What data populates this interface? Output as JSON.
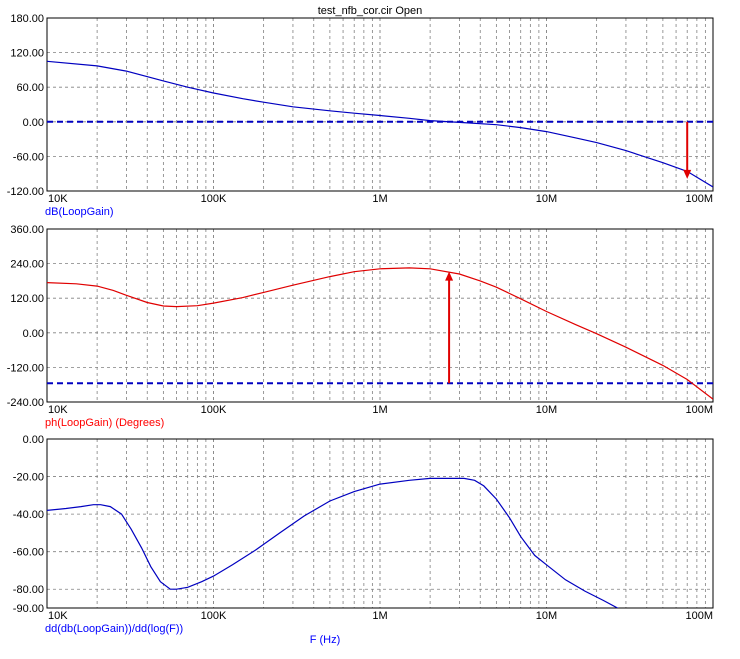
{
  "title": "test_nfb_cor.cir Open",
  "xlabel": "F (Hz)",
  "colors": {
    "background": "#ffffff",
    "grid": "#808080",
    "frame": "#000000",
    "blue": "#0000c0",
    "red": "#e00000",
    "label_blue": "#0000ff",
    "label_red": "#ff0000"
  },
  "chart_data": [
    {
      "type": "line",
      "name": "dB(LoopGain)",
      "ylabel": "dB(LoopGain)",
      "xscale": "log",
      "xlim": [
        10000,
        100000000
      ],
      "ylim": [
        -120,
        180
      ],
      "yticks": [
        "180.00",
        "120.00",
        "60.00",
        "0.00",
        "-60.00",
        "-120.00"
      ],
      "ytick_values": [
        180,
        120,
        60,
        0,
        -60,
        -120
      ],
      "xticks": [
        "10K",
        "100K",
        "1M",
        "10M",
        "100M"
      ],
      "xtick_values": [
        10000,
        100000,
        1000000,
        10000000,
        100000000
      ],
      "grid": true,
      "series": [
        {
          "x": [
            10000,
            20000,
            30000,
            50000,
            70000,
            100000,
            150000,
            200000,
            300000,
            500000,
            700000,
            1000000,
            1500000,
            2000000,
            3000000,
            5000000,
            7000000,
            10000000,
            15000000,
            20000000,
            30000000,
            50000000,
            70000000,
            100000000
          ],
          "y": [
            105,
            97,
            88,
            71,
            60,
            50,
            40,
            34,
            26,
            19,
            15,
            11,
            6,
            2,
            -1,
            -5,
            -10,
            -17,
            -28,
            -36,
            -50,
            -71,
            -86,
            -113
          ]
        }
      ],
      "hline": {
        "y": 0,
        "style": "dashed"
      },
      "marker_arrow": {
        "x": 70000000,
        "y_from": 0,
        "y_to": -99
      }
    },
    {
      "type": "line",
      "name": "ph(LoopGain) (Degrees)",
      "ylabel": "ph(LoopGain) (Degrees)",
      "xscale": "log",
      "xlim": [
        10000,
        100000000
      ],
      "ylim": [
        -240,
        360
      ],
      "yticks": [
        "360.00",
        "240.00",
        "120.00",
        "0.00",
        "-120.00",
        "-240.00"
      ],
      "ytick_values": [
        360,
        240,
        120,
        0,
        -120,
        -240
      ],
      "xticks": [
        "10K",
        "100K",
        "1M",
        "10M",
        "100M"
      ],
      "xtick_values": [
        10000,
        100000,
        1000000,
        10000000,
        100000000
      ],
      "grid": true,
      "series": [
        {
          "x": [
            10000,
            15000,
            20000,
            25000,
            30000,
            40000,
            50000,
            60000,
            80000,
            100000,
            150000,
            200000,
            300000,
            500000,
            700000,
            1000000,
            1500000,
            2000000,
            3000000,
            4000000,
            5000000,
            7000000,
            10000000,
            15000000,
            20000000,
            30000000,
            50000000,
            70000000,
            100000000
          ],
          "y": [
            174,
            170,
            162,
            147,
            130,
            105,
            93,
            91,
            94,
            103,
            122,
            140,
            165,
            195,
            212,
            222,
            225,
            222,
            204,
            180,
            158,
            118,
            74,
            28,
            -3,
            -50,
            -113,
            -162,
            -230
          ]
        }
      ],
      "hline": {
        "y": -175,
        "style": "dashed"
      },
      "marker_arrow": {
        "x": 2600000,
        "y_from": -175,
        "y_to": 212
      }
    },
    {
      "type": "line",
      "name": "dd(db(LoopGain))/dd(log(F))",
      "ylabel": "dd(db(LoopGain))/dd(log(F))",
      "xscale": "log",
      "xlim": [
        10000,
        100000000
      ],
      "ylim": [
        -90,
        0
      ],
      "yticks": [
        "0.00",
        "-20.00",
        "-40.00",
        "-60.00",
        "-80.00",
        "-90.00"
      ],
      "ytick_values": [
        0,
        -20,
        -40,
        -60,
        -80,
        -90
      ],
      "xticks": [
        "10K",
        "100K",
        "1M",
        "10M",
        "100M"
      ],
      "xtick_values": [
        10000,
        100000,
        1000000,
        10000000,
        100000000
      ],
      "grid": true,
      "series": [
        {
          "x": [
            10000,
            13000,
            16000,
            19000,
            21000,
            24000,
            28000,
            32000,
            37000,
            42000,
            48000,
            55000,
            60000,
            70000,
            85000,
            100000,
            130000,
            180000,
            250000,
            350000,
            500000,
            700000,
            1000000,
            1500000,
            2000000,
            2800000,
            3200000,
            3700000,
            4200000,
            5000000,
            6000000,
            7000000,
            8500000,
            10000000,
            13000000,
            17000000,
            22000000,
            28000000
          ],
          "y": [
            -38,
            -37,
            -36,
            -35,
            -35,
            -36,
            -40,
            -48,
            -58,
            -68,
            -76,
            -80,
            -80,
            -79,
            -76,
            -73,
            -67,
            -59,
            -50,
            -41,
            -33,
            -28,
            -24,
            -22,
            -21,
            -21,
            -21,
            -22,
            -25,
            -32,
            -42,
            -52,
            -62,
            -67,
            -75,
            -81,
            -86,
            -91
          ]
        }
      ],
      "marker_arrow": null
    }
  ]
}
